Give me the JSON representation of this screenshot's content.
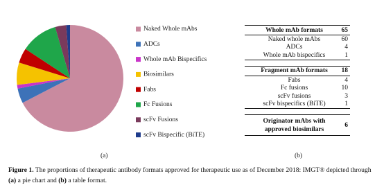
{
  "chart_data": {
    "type": "pie",
    "categories": [
      "Naked Whole mAbs",
      "ADCs",
      "Whole mAb Bispecifics",
      "Biosimilars",
      "Fabs",
      "Fc Fusions",
      "scFv Fusions",
      "scFv Bispecific (BiTE)"
    ],
    "values": [
      60,
      4,
      1,
      6,
      4,
      10,
      3,
      1
    ],
    "colors": [
      "#c98a9f",
      "#3d72b8",
      "#c935c9",
      "#f5c200",
      "#c00000",
      "#1fa64a",
      "#7a3a5c",
      "#1f3c8c"
    ],
    "label": "(a)"
  },
  "table": {
    "label": "(b)",
    "groups": [
      {
        "header": [
          "Whole mAb formats",
          "65"
        ],
        "rows": [
          [
            "Naked whole mAbs",
            "60"
          ],
          [
            "ADCs",
            "4"
          ],
          [
            "Whole mAb bispecifics",
            "1"
          ]
        ]
      },
      {
        "header": [
          "Fragment mAb formats",
          "18"
        ],
        "rows": [
          [
            "Fabs",
            "4"
          ],
          [
            "Fc fusions",
            "10"
          ],
          [
            "scFv fusions",
            "3"
          ],
          [
            "scFv bispecifics (BiTE)",
            "1"
          ]
        ]
      },
      {
        "header": [
          "Originator mAbs with approved biosimilars",
          "6"
        ],
        "rows": []
      }
    ]
  },
  "caption": {
    "figure": "Figure 1.",
    "text1": "The proportions of therapeutic antibody formats approved for therapeutic use as of December 2018: IMGT® depicted through",
    "a": "(a)",
    "text2": "a pie chart and",
    "b": "(b)",
    "text3": "a table format."
  }
}
